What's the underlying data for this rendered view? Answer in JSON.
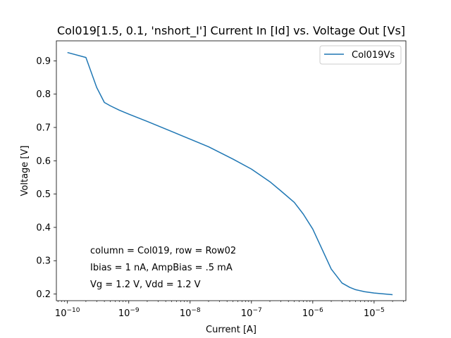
{
  "chart_data": {
    "type": "line",
    "title": "Col019[1.5, 0.1, 'nshort_I'] Current In [Id] vs. Voltage Out [Vs]",
    "xlabel": "Current [A]",
    "ylabel": "Voltage [V]",
    "xscale": "log",
    "xlim": [
      6.6e-11,
      3.3e-05
    ],
    "ylim": [
      0.18,
      0.96
    ],
    "grid": false,
    "legend_position": "top-right",
    "x_ticks": [
      {
        "value": 1e-10,
        "label_base": "10",
        "label_exp": "−10"
      },
      {
        "value": 1e-09,
        "label_base": "10",
        "label_exp": "−9"
      },
      {
        "value": 1e-08,
        "label_base": "10",
        "label_exp": "−8"
      },
      {
        "value": 1e-07,
        "label_base": "10",
        "label_exp": "−7"
      },
      {
        "value": 1e-06,
        "label_base": "10",
        "label_exp": "−6"
      },
      {
        "value": 1e-05,
        "label_base": "10",
        "label_exp": "−5"
      }
    ],
    "y_ticks": [
      {
        "value": 0.2,
        "label": "0.2"
      },
      {
        "value": 0.3,
        "label": "0.3"
      },
      {
        "value": 0.4,
        "label": "0.4"
      },
      {
        "value": 0.5,
        "label": "0.5"
      },
      {
        "value": 0.6,
        "label": "0.6"
      },
      {
        "value": 0.7,
        "label": "0.7"
      },
      {
        "value": 0.8,
        "label": "0.8"
      },
      {
        "value": 0.9,
        "label": "0.9"
      }
    ],
    "series": [
      {
        "name": "Col019Vs",
        "color": "#1f77b4",
        "x": [
          1e-10,
          2e-10,
          3e-10,
          4e-10,
          5e-10,
          7e-10,
          1e-09,
          2e-09,
          5e-09,
          1e-08,
          2e-08,
          5e-08,
          1e-07,
          2e-07,
          3e-07,
          5e-07,
          7e-07,
          1e-06,
          2e-06,
          3e-06,
          4e-06,
          5e-06,
          7e-06,
          1e-05,
          2e-05
        ],
        "y": [
          0.925,
          0.91,
          0.82,
          0.775,
          0.765,
          0.752,
          0.74,
          0.718,
          0.688,
          0.665,
          0.642,
          0.605,
          0.575,
          0.537,
          0.51,
          0.475,
          0.44,
          0.395,
          0.275,
          0.233,
          0.22,
          0.213,
          0.207,
          0.203,
          0.198
        ]
      }
    ],
    "annotations": [
      "column = Col019, row = Row02",
      "Ibias = 1 nA, AmpBias = .5 mA",
      "Vg = 1.2 V, Vdd = 1.2 V"
    ]
  }
}
